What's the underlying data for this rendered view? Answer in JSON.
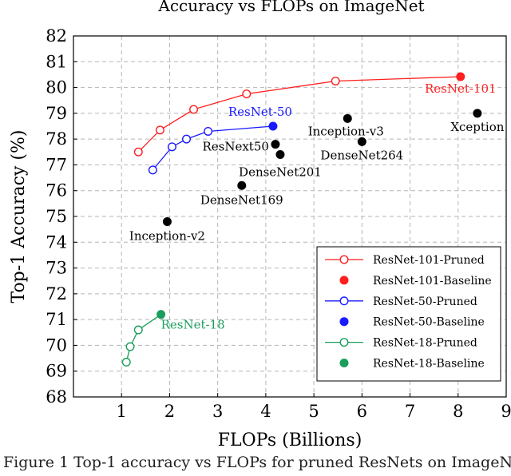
{
  "chart_data": {
    "type": "scatter",
    "title": "Accuracy vs FLOPs on ImageNet",
    "xlabel": "FLOPs (Billions)",
    "ylabel": "Top-1 Accuracy (%)",
    "xlim": [
      0,
      9
    ],
    "ylim": [
      68,
      82
    ],
    "xticks": [
      1,
      2,
      3,
      4,
      5,
      6,
      7,
      8,
      9
    ],
    "yticks": [
      68,
      69,
      70,
      71,
      72,
      73,
      74,
      75,
      76,
      77,
      78,
      79,
      80,
      81,
      82
    ],
    "grid": true,
    "legend_position": "bottom-right",
    "colors": {
      "red": "#ff1f1f",
      "blue": "#1a1aff",
      "green": "#1a9e5c",
      "black": "#000000"
    },
    "series": [
      {
        "name": "ResNet-101-Pruned",
        "kind": "line-open",
        "color": "red",
        "points": [
          [
            1.35,
            77.5
          ],
          [
            1.8,
            78.35
          ],
          [
            2.5,
            79.15
          ],
          [
            3.6,
            79.75
          ],
          [
            5.45,
            80.25
          ],
          [
            8.05,
            80.42
          ]
        ]
      },
      {
        "name": "ResNet-101-Baseline",
        "kind": "filled",
        "color": "red",
        "points": [
          [
            8.05,
            80.42
          ]
        ]
      },
      {
        "name": "ResNet-50-Pruned",
        "kind": "line-open",
        "color": "blue",
        "points": [
          [
            1.65,
            76.8
          ],
          [
            2.05,
            77.7
          ],
          [
            2.35,
            78.0
          ],
          [
            2.8,
            78.3
          ],
          [
            4.15,
            78.5
          ]
        ]
      },
      {
        "name": "ResNet-50-Baseline",
        "kind": "filled",
        "color": "blue",
        "points": [
          [
            4.15,
            78.5
          ]
        ]
      },
      {
        "name": "ResNet-18-Pruned",
        "kind": "line-open",
        "color": "green",
        "points": [
          [
            1.1,
            69.35
          ],
          [
            1.18,
            69.95
          ],
          [
            1.35,
            70.6
          ],
          [
            1.82,
            71.2
          ]
        ]
      },
      {
        "name": "ResNet-18-Baseline",
        "kind": "filled",
        "color": "green",
        "points": [
          [
            1.82,
            71.2
          ]
        ]
      }
    ],
    "others": [
      {
        "name": "Inception-v2",
        "x": 1.95,
        "y": 74.8
      },
      {
        "name": "DenseNet169",
        "x": 3.5,
        "y": 76.2
      },
      {
        "name": "ResNext50",
        "x": 4.2,
        "y": 77.8
      },
      {
        "name": "DenseNet201",
        "x": 4.3,
        "y": 77.4
      },
      {
        "name": "Inception-v3",
        "x": 5.7,
        "y": 78.8
      },
      {
        "name": "DenseNet264",
        "x": 6.0,
        "y": 77.9
      },
      {
        "name": "Xception",
        "x": 8.4,
        "y": 79.0
      }
    ],
    "annotations": [
      {
        "text": "ResNet-101",
        "color": "red"
      },
      {
        "text": "ResNet-50",
        "color": "blue"
      },
      {
        "text": "ResNet-18",
        "color": "green"
      }
    ]
  },
  "caption": "Figure 1 Top-1 accuracy vs FLOPs for pruned ResNets on ImageNet"
}
